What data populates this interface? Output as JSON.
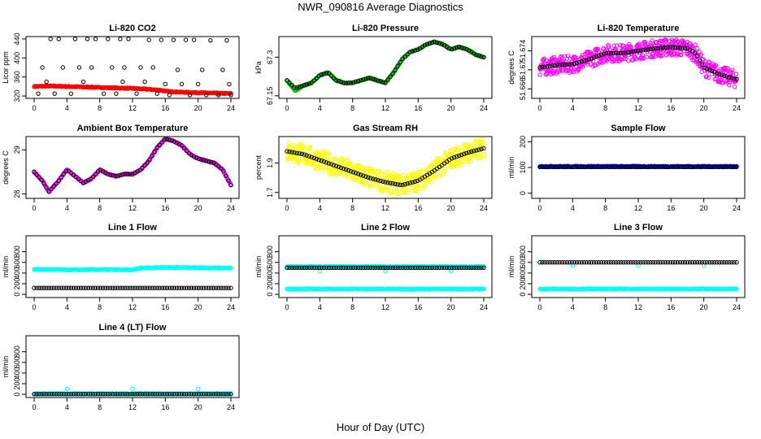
{
  "page": {
    "title": "NWR_090816  Average Diagnostics",
    "xlabel": "Hour of Day (UTC)"
  },
  "chart_data": [
    {
      "type": "scatter",
      "title": "Li-820 CO2",
      "ylabel": "Licor ppm",
      "xlim": [
        0,
        24
      ],
      "xticks": [
        0,
        4,
        8,
        12,
        16,
        20,
        24
      ],
      "ylim": [
        315,
        445
      ],
      "yticks": [
        320,
        360,
        400,
        440
      ],
      "grid": false,
      "series": [
        {
          "color": "#ff0000",
          "style": "dense",
          "x": [
            0,
            2,
            4,
            6,
            8,
            10,
            12,
            14,
            15.5,
            16,
            18,
            20,
            22,
            24
          ],
          "y": [
            340,
            341,
            340,
            339,
            338,
            337,
            336,
            334,
            332,
            330,
            328,
            327,
            326,
            325
          ]
        },
        {
          "color": "#000000",
          "style": "circles",
          "x": [
            2,
            3,
            5,
            6.5,
            7.5,
            9,
            10.5,
            11.5,
            14,
            15.5,
            17,
            18.5,
            19.5,
            21.5,
            23.5,
            1,
            3.5,
            5.5,
            7,
            9.5,
            11,
            13,
            14.5,
            17.5,
            20.5,
            23,
            0.5,
            2.5,
            4.5,
            8.5,
            10,
            12.5,
            15,
            16.5,
            19,
            21,
            22.5,
            24,
            1.5,
            6,
            10.8,
            13.5,
            16,
            18,
            20,
            23.8
          ],
          "y": [
            440,
            440,
            440,
            440,
            440,
            440,
            440,
            440,
            438,
            438,
            438,
            438,
            438,
            437,
            437,
            380,
            380,
            380,
            380,
            380,
            380,
            380,
            380,
            375,
            375,
            375,
            325,
            325,
            325,
            325,
            325,
            325,
            325,
            322,
            322,
            322,
            322,
            322,
            350,
            350,
            350,
            350,
            345,
            345,
            345,
            345
          ]
        }
      ]
    },
    {
      "type": "scatter",
      "title": "Li-820 Pressure",
      "ylabel": "kPa",
      "xlim": [
        0,
        24
      ],
      "xticks": [
        0,
        4,
        8,
        12,
        16,
        20,
        24
      ],
      "ylim": [
        67.14,
        67.38
      ],
      "yticks": [
        67.15,
        67.3
      ],
      "grid": false,
      "series": [
        {
          "color": "#00bb00",
          "style": "dense",
          "x": [
            0,
            1,
            2,
            3,
            4,
            5,
            6,
            7,
            8,
            9,
            10,
            11,
            12,
            13,
            14,
            15,
            16,
            17,
            18,
            19,
            20,
            21,
            22,
            23,
            24
          ],
          "y": [
            67.21,
            67.17,
            67.19,
            67.2,
            67.23,
            67.24,
            67.21,
            67.2,
            67.2,
            67.21,
            67.22,
            67.21,
            67.2,
            67.24,
            67.29,
            67.32,
            67.33,
            67.35,
            67.36,
            67.35,
            67.33,
            67.34,
            67.33,
            67.31,
            67.3
          ]
        },
        {
          "color": "#000000",
          "style": "sparse",
          "x": [
            0,
            1,
            2,
            3,
            4,
            5,
            6,
            7,
            8,
            9,
            10,
            11,
            12,
            13,
            14,
            15,
            16,
            17,
            18,
            19,
            20,
            21,
            22,
            23,
            24
          ],
          "y": [
            67.21,
            67.18,
            67.19,
            67.2,
            67.23,
            67.24,
            67.21,
            67.2,
            67.2,
            67.21,
            67.22,
            67.21,
            67.2,
            67.24,
            67.29,
            67.32,
            67.33,
            67.35,
            67.36,
            67.35,
            67.33,
            67.34,
            67.33,
            67.31,
            67.3
          ]
        }
      ]
    },
    {
      "type": "scatter",
      "title": "Li-820 Temperature",
      "ylabel": "degrees C",
      "xlim": [
        0,
        24
      ],
      "xticks": [
        0,
        4,
        8,
        12,
        16,
        20,
        24
      ],
      "ylim": [
        51.664,
        51.677
      ],
      "yticks": [
        51.666,
        51.67,
        51.674
      ],
      "grid": false,
      "series": [
        {
          "color": "#ff00ff",
          "style": "noisy",
          "x": [
            0,
            2,
            4,
            6,
            8,
            10,
            12,
            14,
            16,
            18,
            19,
            20,
            22,
            24
          ],
          "y": [
            51.6705,
            51.671,
            51.6712,
            51.6722,
            51.6735,
            51.6735,
            51.674,
            51.6745,
            51.6748,
            51.6745,
            51.6735,
            51.6705,
            51.669,
            51.668
          ],
          "noise": 0.0018
        },
        {
          "color": "#000000",
          "style": "sparse",
          "x": [
            0,
            2,
            4,
            6,
            8,
            10,
            12,
            14,
            16,
            18,
            19,
            20,
            22,
            24
          ],
          "y": [
            51.6705,
            51.671,
            51.6712,
            51.6722,
            51.6735,
            51.6735,
            51.674,
            51.6745,
            51.6748,
            51.6745,
            51.6735,
            51.6705,
            51.669,
            51.668
          ]
        }
      ]
    },
    {
      "type": "scatter",
      "title": "Ambient Box Temperature",
      "ylabel": "degrees C",
      "xlim": [
        0,
        24
      ],
      "xticks": [
        0,
        4,
        8,
        12,
        16,
        20,
        24
      ],
      "ylim": [
        27.9,
        29.3
      ],
      "yticks": [
        28.0,
        29.0
      ],
      "grid": false,
      "series": [
        {
          "color": "#ff00ff",
          "style": "dense",
          "x": [
            0,
            1,
            1.8,
            3,
            4,
            5,
            6,
            7,
            8,
            9,
            10,
            11,
            12,
            13,
            14,
            15,
            16,
            17,
            18,
            19,
            20,
            21,
            22,
            23,
            24
          ],
          "y": [
            28.5,
            28.3,
            28.05,
            28.3,
            28.55,
            28.4,
            28.25,
            28.35,
            28.55,
            28.45,
            28.4,
            28.45,
            28.45,
            28.55,
            28.75,
            29.05,
            29.25,
            29.2,
            29.1,
            28.9,
            28.8,
            28.75,
            28.7,
            28.55,
            28.2
          ]
        },
        {
          "color": "#000000",
          "style": "sparse",
          "x": [
            0,
            1,
            1.8,
            3,
            4,
            5,
            6,
            7,
            8,
            9,
            10,
            11,
            12,
            13,
            14,
            15,
            16,
            17,
            18,
            19,
            20,
            21,
            22,
            23,
            24
          ],
          "y": [
            28.5,
            28.3,
            28.05,
            28.3,
            28.55,
            28.4,
            28.25,
            28.35,
            28.55,
            28.45,
            28.4,
            28.45,
            28.45,
            28.55,
            28.75,
            29.05,
            29.25,
            29.2,
            29.1,
            28.9,
            28.8,
            28.75,
            28.7,
            28.55,
            28.2
          ]
        }
      ]
    },
    {
      "type": "scatter",
      "title": "Gas Stream RH",
      "ylabel": "percent",
      "xlim": [
        0,
        24
      ],
      "xticks": [
        0,
        4,
        8,
        12,
        16,
        20,
        24
      ],
      "ylim": [
        1.66,
        2.08
      ],
      "yticks": [
        1.7,
        1.9
      ],
      "grid": false,
      "series": [
        {
          "color": "#ffff00",
          "style": "noisy",
          "x": [
            0,
            2,
            4,
            6,
            8,
            10,
            12,
            14,
            16,
            18,
            20,
            22,
            24
          ],
          "y": [
            1.98,
            1.96,
            1.92,
            1.88,
            1.84,
            1.8,
            1.77,
            1.75,
            1.78,
            1.85,
            1.93,
            1.97,
            2.0
          ],
          "noise": 0.07
        },
        {
          "color": "#000000",
          "style": "sparse",
          "x": [
            0,
            2,
            4,
            6,
            8,
            10,
            12,
            14,
            16,
            18,
            20,
            22,
            24
          ],
          "y": [
            1.98,
            1.96,
            1.92,
            1.88,
            1.84,
            1.8,
            1.77,
            1.75,
            1.78,
            1.85,
            1.93,
            1.97,
            2.0
          ]
        }
      ]
    },
    {
      "type": "scatter",
      "title": "Sample Flow",
      "ylabel": "ml/min",
      "xlim": [
        0,
        24
      ],
      "xticks": [
        0,
        4,
        8,
        12,
        16,
        20,
        24
      ],
      "ylim": [
        -20,
        220
      ],
      "yticks": [
        0,
        100,
        200
      ],
      "grid": false,
      "series": [
        {
          "color": "#0000ff",
          "style": "dense",
          "x": [
            0,
            24
          ],
          "y": [
            104,
            104
          ]
        },
        {
          "color": "#000000",
          "style": "sparse",
          "x": [
            0,
            24
          ],
          "y": [
            102,
            102
          ]
        }
      ]
    },
    {
      "type": "scatter",
      "title": "Line 1 Flow",
      "ylabel": "ml/min",
      "xlim": [
        0,
        24
      ],
      "xticks": [
        0,
        4,
        8,
        12,
        16,
        20,
        24
      ],
      "ylim": [
        -60,
        1100
      ],
      "yticks": [
        0,
        200,
        400,
        600,
        800
      ],
      "grid": false,
      "series": [
        {
          "color": "#00ffff",
          "style": "dense",
          "x": [
            0,
            4,
            8,
            12,
            13,
            16,
            20,
            24
          ],
          "y": [
            470,
            460,
            465,
            460,
            495,
            505,
            500,
            495
          ]
        },
        {
          "color": "#000000",
          "style": "sparse",
          "x": [
            0,
            24
          ],
          "y": [
            120,
            120
          ]
        }
      ]
    },
    {
      "type": "scatter",
      "title": "Line 2 Flow",
      "ylabel": "ml/min",
      "xlim": [
        0,
        24
      ],
      "xticks": [
        0,
        4,
        8,
        12,
        16,
        20,
        24
      ],
      "ylim": [
        -60,
        1100
      ],
      "yticks": [
        0,
        200,
        400,
        600,
        800
      ],
      "grid": false,
      "series": [
        {
          "color": "#00ffff",
          "style": "dense",
          "x": [
            0,
            24
          ],
          "y": [
            520,
            520
          ]
        },
        {
          "color": "#00ffff",
          "style": "dense",
          "x": [
            0,
            24
          ],
          "y": [
            100,
            100
          ]
        },
        {
          "color": "#00ffff",
          "style": "outliers",
          "x": [
            4,
            12,
            20
          ],
          "y": [
            430,
            430,
            430
          ]
        },
        {
          "color": "#000000",
          "style": "sparse",
          "x": [
            0,
            24
          ],
          "y": [
            500,
            500
          ]
        }
      ]
    },
    {
      "type": "scatter",
      "title": "Line 3 Flow",
      "ylabel": "ml/min",
      "xlim": [
        0,
        24
      ],
      "xticks": [
        0,
        4,
        8,
        12,
        16,
        20,
        24
      ],
      "ylim": [
        -60,
        1100
      ],
      "yticks": [
        0,
        200,
        400,
        600,
        800
      ],
      "grid": false,
      "series": [
        {
          "color": "#00ffff",
          "style": "dense",
          "x": [
            0,
            24
          ],
          "y": [
            100,
            100
          ]
        },
        {
          "color": "#00ffff",
          "style": "outliers",
          "x": [
            0.3,
            4,
            12,
            20
          ],
          "y": [
            610,
            540,
            540,
            540
          ]
        },
        {
          "color": "#000000",
          "style": "sparse",
          "x": [
            0,
            24
          ],
          "y": [
            600,
            600
          ]
        }
      ]
    },
    {
      "type": "scatter",
      "title": "Line 4 (LT) Flow",
      "ylabel": "ml/min",
      "xlim": [
        0,
        24
      ],
      "xticks": [
        0,
        4,
        8,
        12,
        16,
        20,
        24
      ],
      "ylim": [
        -60,
        1100
      ],
      "yticks": [
        0,
        200,
        400,
        600,
        800
      ],
      "grid": false,
      "series": [
        {
          "color": "#00ffff",
          "style": "dense",
          "x": [
            0,
            24
          ],
          "y": [
            10,
            10
          ]
        },
        {
          "color": "#00ffff",
          "style": "outliers",
          "x": [
            4,
            12,
            20
          ],
          "y": [
            100,
            100,
            100
          ]
        },
        {
          "color": "#000000",
          "style": "sparse",
          "x": [
            0,
            24
          ],
          "y": [
            5,
            5
          ]
        }
      ]
    }
  ]
}
